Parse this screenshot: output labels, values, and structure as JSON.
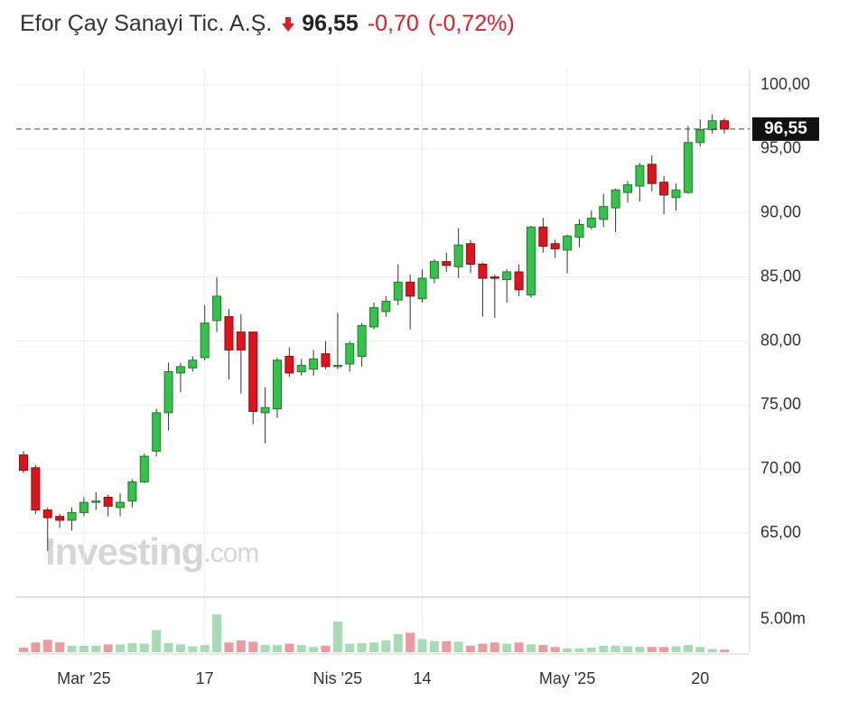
{
  "chart_data": {
    "type": "candlestick",
    "title": "Efor Çay Sanayi Tic. A.Ş.",
    "change": "-0,70",
    "change_pct": "(-0,72%)",
    "last": {
      "value": 96.55,
      "label": "96,55"
    },
    "watermark": "Investing",
    "watermark_suffix": ".com",
    "up_color": "#35c24a",
    "down_color": "#e0131d",
    "volume_up_color": "#a7dbb5",
    "volume_down_color": "#eb9aa0",
    "grid": true,
    "categories": [
      null,
      null,
      null,
      null,
      null,
      "Mar '25",
      null,
      null,
      null,
      null,
      null,
      null,
      null,
      null,
      null,
      "17",
      null,
      null,
      null,
      null,
      null,
      null,
      null,
      null,
      null,
      null,
      "Nis '25",
      null,
      null,
      null,
      null,
      null,
      null,
      "14",
      null,
      null,
      null,
      null,
      null,
      null,
      null,
      null,
      null,
      null,
      null,
      "May '25",
      null,
      null,
      null,
      null,
      null,
      null,
      null,
      null,
      null,
      null,
      "20",
      null,
      null
    ],
    "open": [
      71.1,
      70.1,
      66.8,
      66.3,
      66.0,
      66.6,
      67.4,
      67.8,
      67.0,
      67.5,
      69.0,
      71.4,
      74.4,
      77.5,
      77.9,
      78.7,
      81.6,
      81.9,
      80.7,
      80.7,
      74.4,
      74.7,
      78.8,
      77.6,
      77.8,
      79.0,
      78.0,
      78.2,
      78.8,
      81.1,
      82.3,
      83.2,
      84.6,
      83.3,
      84.9,
      86.2,
      85.8,
      87.6,
      86.0,
      85.0,
      84.8,
      85.4,
      83.6,
      88.9,
      87.6,
      87.1,
      88.1,
      88.9,
      89.5,
      90.4,
      91.6,
      92.1,
      93.8,
      92.4,
      91.2,
      91.6,
      95.5,
      96.5,
      97.2
    ],
    "high": [
      71.4,
      70.3,
      67.0,
      66.5,
      67.0,
      67.8,
      68.2,
      68.0,
      68.1,
      69.2,
      71.2,
      74.7,
      78.3,
      78.3,
      78.8,
      82.8,
      85.0,
      82.5,
      82.1,
      80.7,
      76.4,
      78.7,
      79.5,
      78.6,
      79.3,
      80.0,
      82.2,
      80.0,
      81.4,
      83.0,
      83.5,
      86.0,
      85.2,
      85.6,
      86.4,
      86.9,
      88.8,
      87.9,
      86.1,
      85.2,
      85.6,
      86.0,
      89.0,
      89.6,
      87.9,
      88.3,
      89.5,
      90.2,
      91.5,
      91.9,
      92.5,
      93.9,
      94.5,
      92.9,
      92.3,
      96.8,
      97.3,
      97.7,
      97.4
    ],
    "low": [
      69.7,
      66.5,
      63.6,
      65.4,
      65.2,
      66.3,
      66.8,
      66.3,
      66.3,
      67.0,
      68.9,
      71.0,
      73.0,
      76.0,
      77.6,
      78.5,
      80.7,
      77.0,
      75.9,
      73.5,
      72.0,
      74.0,
      77.2,
      77.3,
      77.3,
      77.8,
      77.8,
      77.6,
      78.0,
      80.9,
      81.9,
      82.8,
      80.9,
      83.0,
      84.5,
      85.4,
      84.9,
      85.3,
      81.9,
      81.8,
      83.0,
      83.5,
      83.4,
      86.9,
      86.5,
      85.3,
      87.3,
      88.7,
      88.9,
      88.5,
      90.8,
      90.9,
      91.7,
      89.9,
      90.2,
      91.5,
      95.2,
      96.2,
      96.2
    ],
    "close": [
      69.9,
      66.8,
      66.2,
      66.0,
      66.6,
      67.4,
      67.5,
      67.1,
      67.4,
      69.0,
      71.0,
      74.4,
      77.6,
      78.0,
      78.5,
      81.4,
      83.5,
      79.3,
      79.3,
      74.5,
      74.8,
      78.5,
      77.5,
      78.1,
      78.6,
      78.0,
      78.1,
      79.8,
      81.2,
      82.6,
      83.1,
      84.6,
      83.5,
      84.9,
      86.2,
      85.9,
      87.5,
      86.0,
      84.9,
      84.9,
      85.4,
      84.0,
      88.9,
      87.4,
      87.2,
      88.2,
      89.1,
      89.6,
      90.5,
      91.8,
      92.2,
      93.7,
      92.3,
      91.4,
      91.8,
      95.5,
      96.5,
      97.2,
      96.55
    ],
    "volume": [
      0.7,
      1.5,
      1.9,
      1.5,
      1.0,
      1.0,
      1.0,
      1.2,
      1.2,
      1.4,
      1.3,
      3.4,
      1.4,
      1.2,
      0.9,
      1.1,
      5.8,
      1.5,
      1.8,
      1.6,
      1.1,
      1.1,
      1.3,
      1.1,
      0.8,
      1.0,
      4.7,
      1.3,
      1.4,
      1.5,
      1.8,
      2.8,
      3.0,
      2.0,
      1.7,
      1.7,
      1.6,
      1.0,
      1.3,
      1.5,
      1.3,
      1.5,
      1.2,
      1.1,
      0.8,
      0.6,
      0.6,
      0.7,
      1.0,
      1.0,
      0.9,
      0.8,
      0.8,
      0.8,
      0.9,
      1.1,
      0.8,
      0.5,
      0.4
    ],
    "ylim": [
      60,
      101.2
    ],
    "yticks": [
      {
        "value": 65,
        "label": "65,00"
      },
      {
        "value": 70,
        "label": "70,00"
      },
      {
        "value": 75,
        "label": "75,00"
      },
      {
        "value": 80,
        "label": "80,00"
      },
      {
        "value": 85,
        "label": "85,00"
      },
      {
        "value": 90,
        "label": "90,00"
      },
      {
        "value": 95,
        "label": "95,00"
      },
      {
        "value": 100,
        "label": "100,00"
      }
    ],
    "y2lim": [
      0,
      8.33
    ],
    "y2ticks": [
      {
        "value": 5,
        "label": "5.00m"
      }
    ]
  }
}
